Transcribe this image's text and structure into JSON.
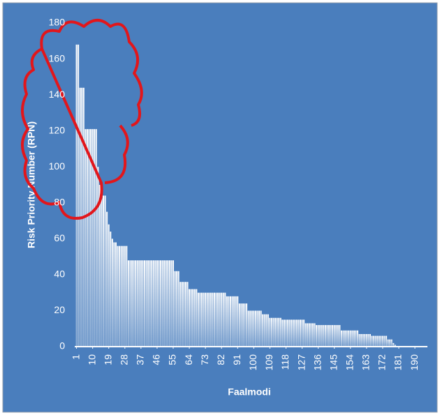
{
  "chart_data": {
    "type": "bar",
    "y_label": "Risk Priority Number (RPN)",
    "x_label": "Faalmodi",
    "color": "#ffffff",
    "x": [
      1,
      2,
      3,
      4,
      5,
      6,
      7,
      8,
      9,
      10,
      11,
      12,
      13,
      14,
      15,
      16,
      17,
      18,
      19,
      20,
      21,
      22,
      23,
      24,
      25,
      26,
      27,
      28,
      29,
      30,
      31,
      32,
      33,
      34,
      35,
      36,
      37,
      38,
      39,
      40,
      41,
      42,
      43,
      44,
      45,
      46,
      47,
      48,
      49,
      50,
      51,
      52,
      53,
      54,
      55,
      56,
      57,
      58,
      59,
      60,
      61,
      62,
      63,
      64,
      65,
      66,
      67,
      68,
      69,
      70,
      71,
      72,
      73,
      74,
      75,
      76,
      77,
      78,
      79,
      80,
      81,
      82,
      83,
      84,
      85,
      86,
      87,
      88,
      89,
      90,
      91,
      92,
      93,
      94,
      95,
      96,
      97,
      98,
      99,
      100,
      101,
      102,
      103,
      104,
      105,
      106,
      107,
      108,
      109,
      110,
      111,
      112,
      113,
      114,
      115,
      116,
      117,
      118,
      119,
      120,
      121,
      122,
      123,
      124,
      125,
      126,
      127,
      128,
      129,
      130,
      131,
      132,
      133,
      134,
      135,
      136,
      137,
      138,
      139,
      140,
      141,
      142,
      143,
      144,
      145,
      146,
      147,
      148,
      149,
      150,
      151,
      152,
      153,
      154,
      155,
      156,
      157,
      158,
      159,
      160,
      161,
      162,
      163,
      164,
      165,
      166,
      167,
      168,
      169,
      170,
      171,
      172,
      173,
      174,
      175,
      176,
      177,
      178,
      179,
      180,
      181,
      182,
      183,
      184,
      185,
      186,
      187,
      188,
      189,
      190,
      191,
      192,
      193,
      194,
      195,
      196
    ],
    "values": [
      168,
      168,
      144,
      144,
      144,
      121,
      121,
      121,
      121,
      121,
      121,
      121,
      100,
      90,
      84,
      84,
      84,
      75,
      68,
      64,
      60,
      58,
      58,
      56,
      56,
      56,
      56,
      56,
      56,
      48,
      48,
      48,
      48,
      48,
      48,
      48,
      48,
      48,
      48,
      48,
      48,
      48,
      48,
      48,
      48,
      48,
      48,
      48,
      48,
      48,
      48,
      48,
      48,
      48,
      48,
      42,
      42,
      42,
      36,
      36,
      36,
      36,
      36,
      32,
      32,
      32,
      32,
      32,
      30,
      30,
      30,
      30,
      30,
      30,
      30,
      30,
      30,
      30,
      30,
      30,
      30,
      30,
      30,
      30,
      28,
      28,
      28,
      28,
      28,
      28,
      28,
      24,
      24,
      24,
      24,
      24,
      20,
      20,
      20,
      20,
      20,
      20,
      20,
      20,
      18,
      18,
      18,
      18,
      16,
      16,
      16,
      16,
      16,
      16,
      16,
      15,
      15,
      15,
      15,
      15,
      15,
      15,
      15,
      15,
      15,
      15,
      15,
      15,
      13,
      13,
      13,
      13,
      13,
      13,
      12,
      12,
      12,
      12,
      12,
      12,
      12,
      12,
      12,
      12,
      12,
      12,
      12,
      12,
      9,
      9,
      9,
      9,
      9,
      9,
      9,
      9,
      9,
      9,
      7,
      7,
      7,
      7,
      7,
      7,
      7,
      6,
      6,
      6,
      6,
      6,
      6,
      6,
      6,
      6,
      4,
      4,
      4,
      2,
      1,
      0,
      0,
      0,
      0,
      0,
      0,
      0,
      0,
      0,
      0,
      0,
      0,
      0,
      0,
      0,
      0,
      0
    ],
    "xlim": [
      0,
      197
    ],
    "xticks": [
      1,
      10,
      19,
      28,
      37,
      46,
      55,
      64,
      73,
      82,
      91,
      100,
      109,
      118,
      127,
      136,
      145,
      154,
      163,
      172,
      181,
      190
    ],
    "ylim": [
      0,
      180
    ],
    "yticks": [
      0,
      20,
      40,
      60,
      80,
      100,
      120,
      140,
      160,
      180
    ]
  }
}
